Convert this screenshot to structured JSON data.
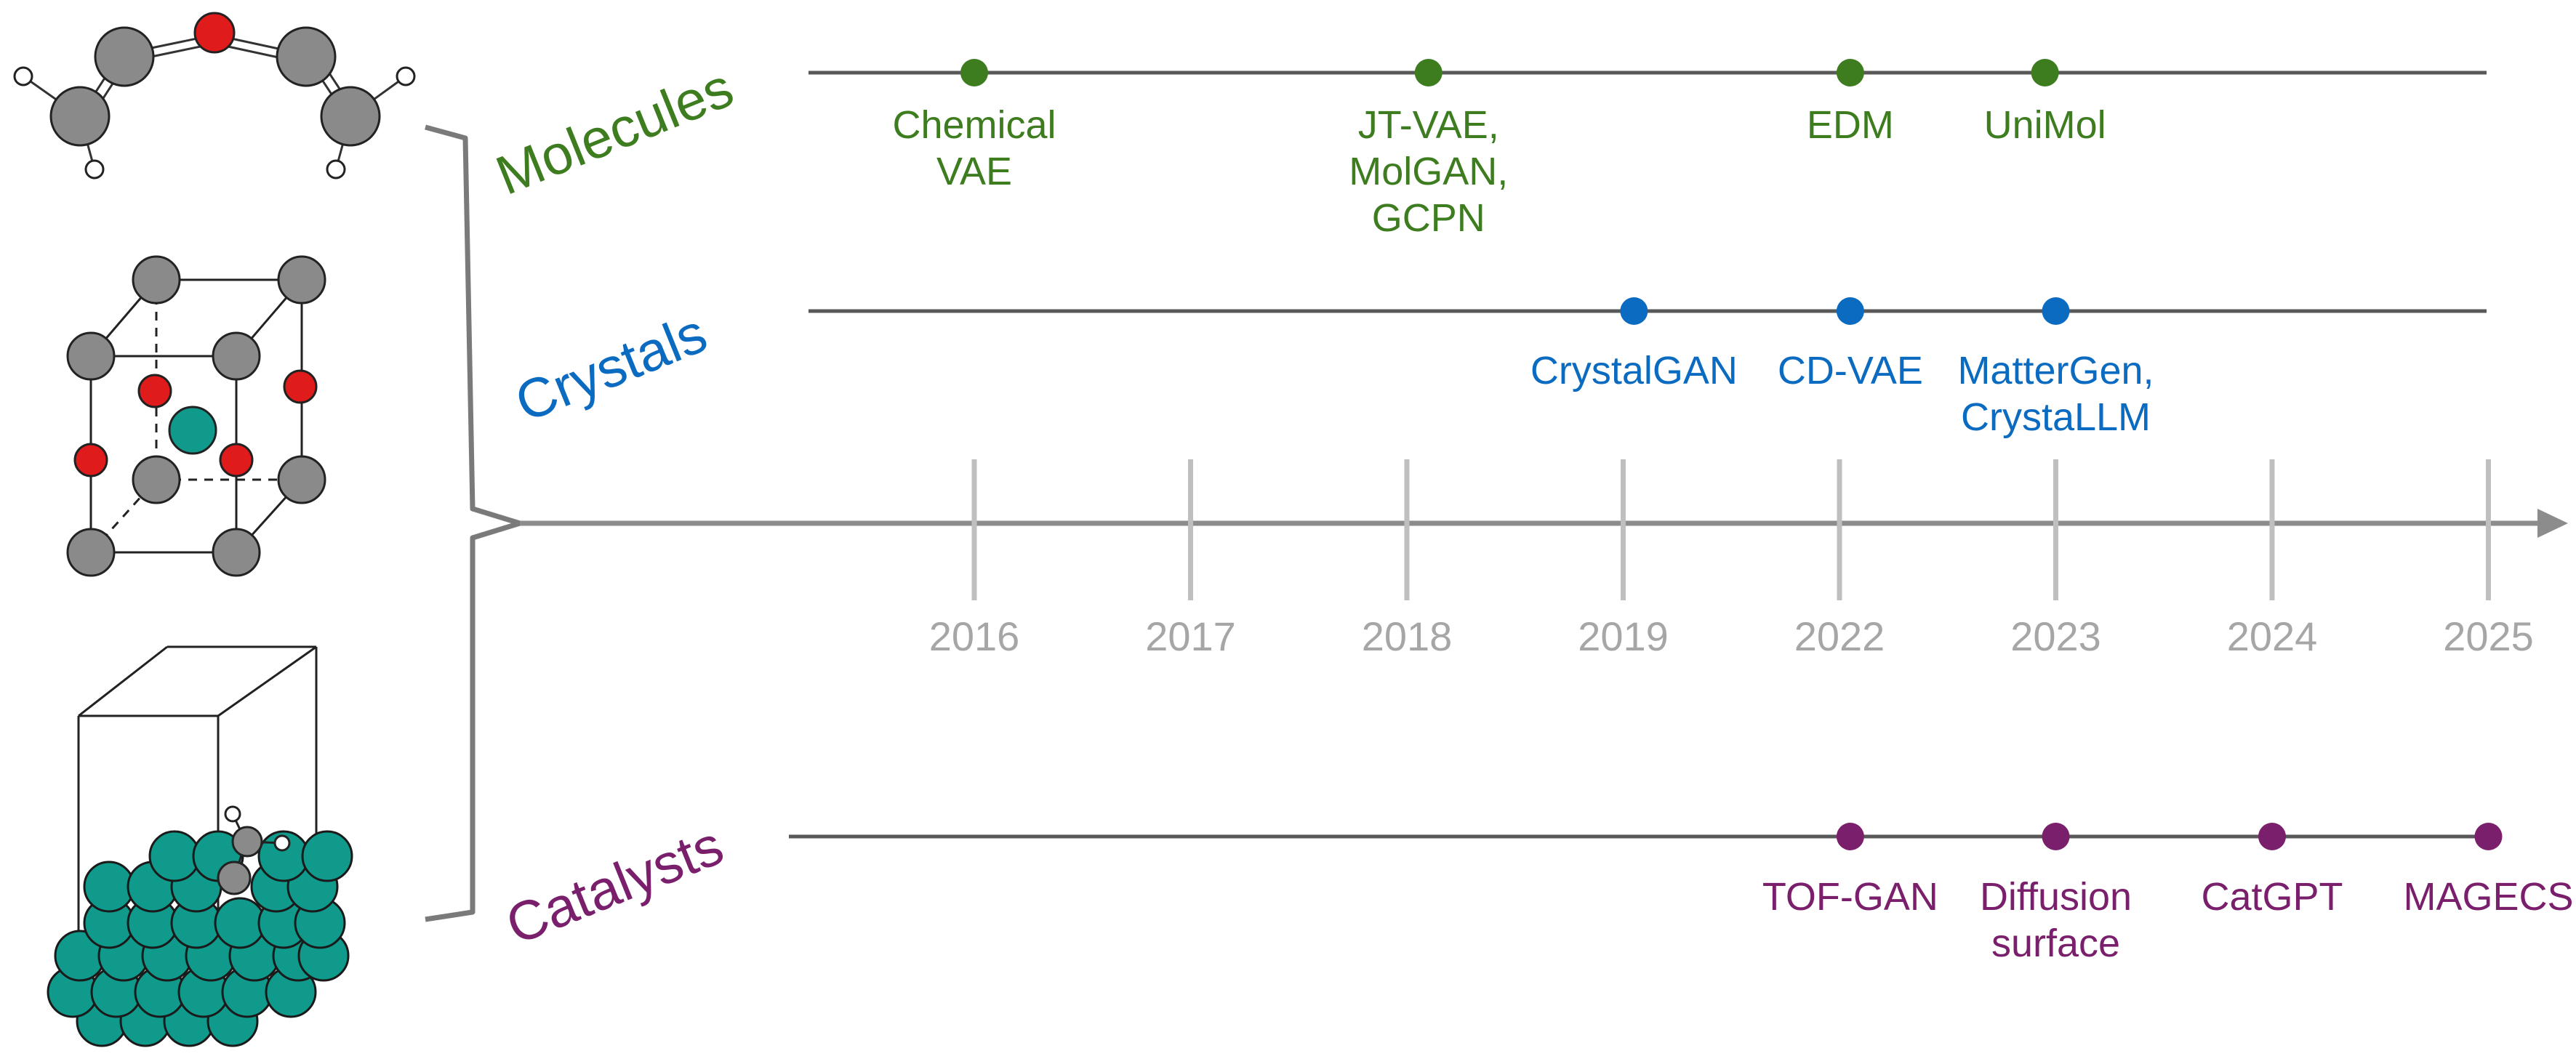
{
  "colors": {
    "molecules": "#3d7d1f",
    "crystals": "#0a6bc1",
    "catalysts": "#7a1f6b",
    "axis": "#8c8c8c",
    "year": "#a6a6a6",
    "track": "#595959",
    "atom_gray": "#8a8a8a",
    "atom_red": "#e01b1b",
    "atom_teal": "#0f9a8c",
    "atom_white": "#ffffff"
  },
  "axis": {
    "years": [
      "2016",
      "2017",
      "2018",
      "2019",
      "2022",
      "2023",
      "2024",
      "2025"
    ]
  },
  "tracks": [
    {
      "id": "molecules",
      "label": "Molecules",
      "events": [
        {
          "year": "2016",
          "offset": 0.0,
          "lines": [
            "Chemical",
            "VAE"
          ]
        },
        {
          "year": "2018",
          "offset": 0.1,
          "lines": [
            "JT-VAE,",
            "MolGAN,",
            "GCPN"
          ]
        },
        {
          "year": "2022",
          "offset": 0.05,
          "lines": [
            "EDM"
          ]
        },
        {
          "year": "2023",
          "offset": -0.05,
          "lines": [
            "UniMol"
          ]
        }
      ]
    },
    {
      "id": "crystals",
      "label": "Crystals",
      "events": [
        {
          "year": "2019",
          "offset": 0.05,
          "lines": [
            "CrystalGAN"
          ]
        },
        {
          "year": "2022",
          "offset": 0.05,
          "lines": [
            "CD-VAE"
          ]
        },
        {
          "year": "2023",
          "offset": 0.0,
          "lines": [
            "MatterGen,",
            "CrystaLLM"
          ]
        }
      ]
    },
    {
      "id": "catalysts",
      "label": "Catalysts",
      "events": [
        {
          "year": "2022",
          "offset": 0.05,
          "lines": [
            "TOF-GAN"
          ]
        },
        {
          "year": "2023",
          "offset": 0.0,
          "lines": [
            "Diffusion",
            "surface"
          ]
        },
        {
          "year": "2024",
          "offset": 0.0,
          "lines": [
            "CatGPT"
          ]
        },
        {
          "year": "2025",
          "offset": 0.0,
          "lines": [
            "MAGECS"
          ]
        }
      ]
    }
  ]
}
